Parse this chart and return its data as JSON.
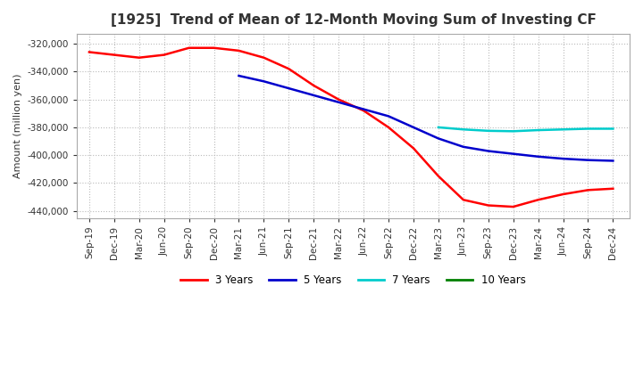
{
  "title": "[1925]  Trend of Mean of 12-Month Moving Sum of Investing CF",
  "ylabel": "Amount (million yen)",
  "background_color": "#ffffff",
  "grid_color": "#bbbbbb",
  "ylim": [
    -445000,
    -313000
  ],
  "yticks": [
    -320000,
    -340000,
    -360000,
    -380000,
    -400000,
    -420000,
    -440000
  ],
  "series": {
    "3yr": {
      "color": "#ff0000",
      "label": "3 Years",
      "x": [
        0,
        3,
        6,
        9,
        12,
        15,
        18,
        21,
        24,
        27,
        30,
        33,
        36,
        39,
        42,
        45,
        48,
        51,
        54,
        57,
        60,
        63
      ],
      "y": [
        -326000,
        -328000,
        -330000,
        -328000,
        -323000,
        -323000,
        -325000,
        -330000,
        -338000,
        -350000,
        -360000,
        -368000,
        -380000,
        -395000,
        -415000,
        -432000,
        -436000,
        -437000,
        -432000,
        -428000,
        -425000,
        -424000
      ]
    },
    "5yr": {
      "color": "#0000cc",
      "label": "5 Years",
      "x": [
        18,
        21,
        24,
        27,
        30,
        33,
        36,
        39,
        42,
        45,
        48,
        51,
        54,
        57,
        60,
        63
      ],
      "y": [
        -343000,
        -347000,
        -352000,
        -357000,
        -362000,
        -367000,
        -372000,
        -380000,
        -388000,
        -394000,
        -397000,
        -399000,
        -401000,
        -402500,
        -403500,
        -404000
      ]
    },
    "7yr": {
      "color": "#00cccc",
      "label": "7 Years",
      "x": [
        42,
        45,
        48,
        51,
        54,
        57,
        60,
        63
      ],
      "y": [
        -380000,
        -381500,
        -382500,
        -382800,
        -382000,
        -381500,
        -381000,
        -381000
      ]
    },
    "10yr": {
      "color": "#008000",
      "label": "10 Years",
      "x": [],
      "y": []
    }
  },
  "xtick_positions": [
    0,
    3,
    6,
    9,
    12,
    15,
    18,
    21,
    24,
    27,
    30,
    33,
    36,
    39,
    42,
    45,
    48,
    51,
    54,
    57,
    60,
    63
  ],
  "xtick_labels": [
    "Sep-19",
    "Dec-19",
    "Mar-20",
    "Jun-20",
    "Sep-20",
    "Dec-20",
    "Mar-21",
    "Jun-21",
    "Sep-21",
    "Dec-21",
    "Mar-22",
    "Jun-22",
    "Sep-22",
    "Dec-22",
    "Mar-23",
    "Jun-23",
    "Sep-23",
    "Dec-23",
    "Mar-24",
    "Jun-24",
    "Sep-24",
    "Dec-24"
  ],
  "title_fontsize": 11,
  "ylabel_fontsize": 8,
  "tick_fontsize": 7.5
}
